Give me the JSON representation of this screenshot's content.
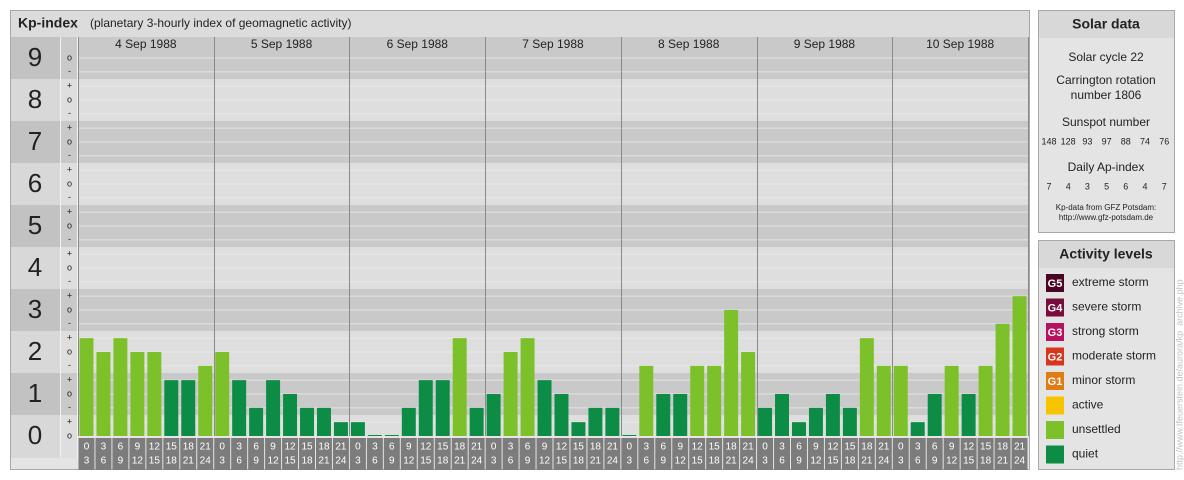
{
  "chart_data": {
    "type": "bar",
    "title": "Kp-index",
    "subtitle": "(planetary 3-hourly index of geomagnetic activity)",
    "days": [
      "4 Sep 1988",
      "5 Sep 1988",
      "6 Sep 1988",
      "7 Sep 1988",
      "8 Sep 1988",
      "9 Sep 1988",
      "10 Sep 1988"
    ],
    "time_labels": [
      [
        "0",
        "3"
      ],
      [
        "3",
        "6"
      ],
      [
        "6",
        "9"
      ],
      [
        "9",
        "12"
      ],
      [
        "12",
        "15"
      ],
      [
        "15",
        "18"
      ],
      [
        "18",
        "21"
      ],
      [
        "21",
        "24"
      ]
    ],
    "values": [
      2.33,
      2,
      2.33,
      2,
      2,
      1.33,
      1.33,
      1.67,
      2,
      1.33,
      0.67,
      1.33,
      1,
      0.67,
      0.67,
      0.33,
      0.33,
      0,
      0,
      0.67,
      1.33,
      1.33,
      2.33,
      0.67,
      1,
      2,
      2.33,
      1.33,
      1,
      0.33,
      0.67,
      0.67,
      0,
      1.67,
      1,
      1,
      1.67,
      1.67,
      3,
      2,
      0.67,
      1,
      0.33,
      0.67,
      1,
      0.67,
      2.33,
      1.67,
      1.67,
      0.33,
      1,
      1.67,
      1,
      1.67,
      2.67,
      3.33
    ],
    "bar_colors": [
      "#7dc12a",
      "#7dc12a",
      "#7dc12a",
      "#7dc12a",
      "#7dc12a",
      "#0c8c44",
      "#0c8c44",
      "#7dc12a",
      "#7dc12a",
      "#0c8c44",
      "#0c8c44",
      "#0c8c44",
      "#0c8c44",
      "#0c8c44",
      "#0c8c44",
      "#0c8c44",
      "#0c8c44",
      "#0c8c44",
      "#0c8c44",
      "#0c8c44",
      "#0c8c44",
      "#0c8c44",
      "#7dc12a",
      "#0c8c44",
      "#0c8c44",
      "#7dc12a",
      "#7dc12a",
      "#0c8c44",
      "#0c8c44",
      "#0c8c44",
      "#0c8c44",
      "#0c8c44",
      "#0c8c44",
      "#7dc12a",
      "#0c8c44",
      "#0c8c44",
      "#7dc12a",
      "#7dc12a",
      "#7dc12a",
      "#7dc12a",
      "#0c8c44",
      "#0c8c44",
      "#0c8c44",
      "#0c8c44",
      "#0c8c44",
      "#0c8c44",
      "#7dc12a",
      "#7dc12a",
      "#7dc12a",
      "#0c8c44",
      "#0c8c44",
      "#7dc12a",
      "#0c8c44",
      "#7dc12a",
      "#7dc12a",
      "#7dc12a"
    ],
    "ylim": [
      0,
      9.5
    ],
    "yticks": [
      0,
      1,
      2,
      3,
      4,
      5,
      6,
      7,
      8,
      9
    ],
    "minor_ticks": [
      {
        "value": 0,
        "label": "o"
      },
      {
        "value": 0.33,
        "label": "+"
      },
      {
        "value": 0.67,
        "label": "-"
      },
      {
        "value": 1,
        "label": "o"
      },
      {
        "value": 1.33,
        "label": "+"
      },
      {
        "value": 1.67,
        "label": "-"
      },
      {
        "value": 2,
        "label": "o"
      },
      {
        "value": 2.33,
        "label": "+"
      },
      {
        "value": 2.67,
        "label": "-"
      },
      {
        "value": 3,
        "label": "o"
      },
      {
        "value": 3.33,
        "label": "+"
      },
      {
        "value": 3.67,
        "label": "-"
      },
      {
        "value": 4,
        "label": "o"
      },
      {
        "value": 4.33,
        "label": "+"
      },
      {
        "value": 4.67,
        "label": "-"
      },
      {
        "value": 5,
        "label": "o"
      },
      {
        "value": 5.33,
        "label": "+"
      },
      {
        "value": 5.67,
        "label": "-"
      },
      {
        "value": 6,
        "label": "o"
      },
      {
        "value": 6.33,
        "label": "+"
      },
      {
        "value": 6.67,
        "label": "-"
      },
      {
        "value": 7,
        "label": "o"
      },
      {
        "value": 7.33,
        "label": "+"
      },
      {
        "value": 7.67,
        "label": "-"
      },
      {
        "value": 8,
        "label": "o"
      },
      {
        "value": 8.33,
        "label": "+"
      },
      {
        "value": 8.67,
        "label": "-"
      },
      {
        "value": 9,
        "label": "o"
      }
    ],
    "grid": true
  },
  "solar_data": {
    "heading": "Solar data",
    "cycle": "Solar cycle 22",
    "carrington": [
      "Carrington rotation",
      "number 1806"
    ],
    "sunspot_label": "Sunspot number",
    "sunspots": [
      148,
      128,
      93,
      97,
      88,
      74,
      76
    ],
    "ap_label": "Daily Ap-index",
    "ap": [
      7,
      4,
      3,
      5,
      6,
      4,
      7
    ],
    "source": [
      "Kp-data from GFZ Potsdam:",
      "http://www.gfz-potsdam.de"
    ]
  },
  "activity_levels": {
    "heading": "Activity levels",
    "items": [
      {
        "code": "G5",
        "label": "extreme storm",
        "color": "#4a0424"
      },
      {
        "code": "G4",
        "label": "severe storm",
        "color": "#780c3c"
      },
      {
        "code": "G3",
        "label": "strong storm",
        "color": "#b8125e"
      },
      {
        "code": "G2",
        "label": "moderate storm",
        "color": "#d6361e"
      },
      {
        "code": "G1",
        "label": "minor storm",
        "color": "#e07c14"
      },
      {
        "code": "",
        "label": "active",
        "color": "#f8c400"
      },
      {
        "code": "",
        "label": "unsettled",
        "color": "#7dc12a"
      },
      {
        "code": "",
        "label": "quiet",
        "color": "#0c8c44"
      }
    ]
  },
  "credit": "http://www.tfeuerstein.de/aurora/kp_archive.php"
}
